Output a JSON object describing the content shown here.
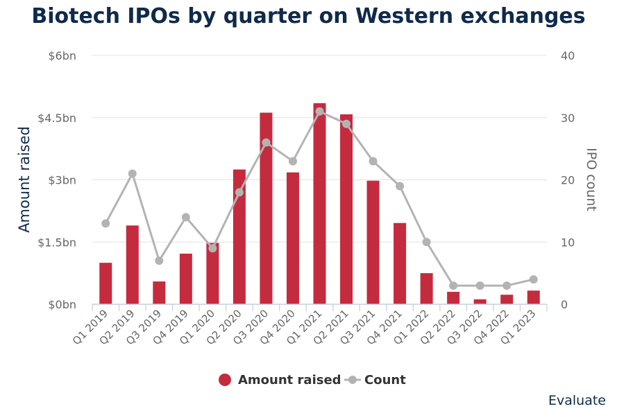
{
  "title": "Biotech IPOs by quarter on Western exchanges",
  "credit": "Evaluate",
  "colors": {
    "bar": "#c52b3e",
    "line": "#b3b3b3",
    "title": "#0f2a4a",
    "axis_text": "#666666"
  },
  "chart_data": {
    "type": "bar",
    "title": "Biotech IPOs by quarter on Western exchanges",
    "categories": [
      "Q1 2019",
      "Q2 2019",
      "Q3 2019",
      "Q4 2019",
      "Q1 2020",
      "Q2 2020",
      "Q3 2020",
      "Q4 2020",
      "Q1 2021",
      "Q2 2021",
      "Q3 2021",
      "Q4 2021",
      "Q1 2022",
      "Q2 2022",
      "Q3 2022",
      "Q4 2022",
      "Q1 2023"
    ],
    "series": [
      {
        "name": "Amount raised",
        "type": "bar",
        "axis": "left",
        "values": [
          1.0,
          1.9,
          0.55,
          1.22,
          1.48,
          3.25,
          4.62,
          3.18,
          4.85,
          4.58,
          2.98,
          1.96,
          0.75,
          0.3,
          0.12,
          0.23,
          0.33
        ]
      },
      {
        "name": "Count",
        "type": "line",
        "axis": "right",
        "values": [
          13,
          21,
          7,
          14,
          9,
          18,
          26,
          23,
          31,
          29,
          23,
          19,
          10,
          3,
          3,
          3,
          4
        ]
      }
    ],
    "ylabel": "Amount raised",
    "y2label": "IPO count",
    "ylim": [
      0,
      6
    ],
    "y2lim": [
      0,
      40
    ],
    "yticks": [
      "$0bn",
      "$1.5bn",
      "$3bn",
      "$4.5bn",
      "$6bn"
    ],
    "y2ticks": [
      "0",
      "10",
      "20",
      "30",
      "40"
    ],
    "grid": true,
    "legend_position": "bottom-center"
  }
}
